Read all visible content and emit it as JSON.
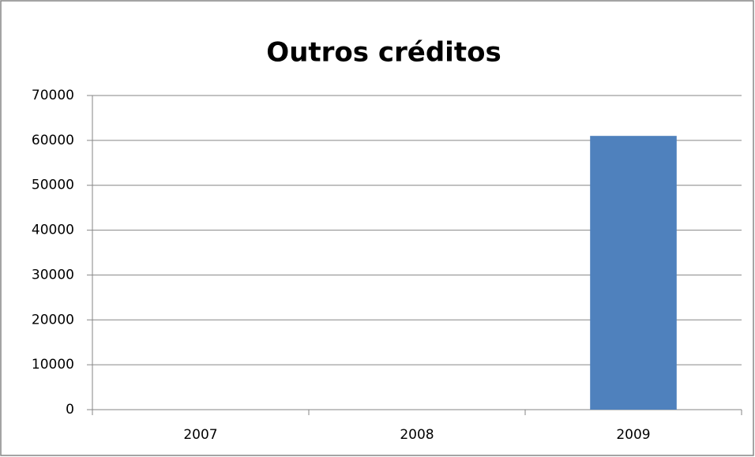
{
  "chart_data": {
    "type": "bar",
    "title": "Outros créditos",
    "categories": [
      "2007",
      "2008",
      "2009"
    ],
    "values": [
      0,
      0,
      61000
    ],
    "color": "#4f81bd",
    "ylim": [
      0,
      70000
    ],
    "yticks": [
      0,
      10000,
      20000,
      30000,
      40000,
      50000,
      60000,
      70000
    ],
    "grid": true
  }
}
